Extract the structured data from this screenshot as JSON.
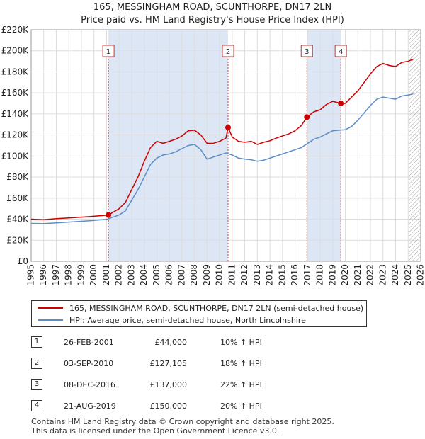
{
  "chart_title_line1": "165, MESSINGHAM ROAD, SCUNTHORPE, DN17 2LN",
  "chart_title_line2": "Price paid vs. HM Land Registry's House Price Index (HPI)",
  "colors": {
    "property": "#cc0000",
    "hpi": "#5b8ec9",
    "grid": "#dddddd",
    "shade": "#dde6f5",
    "hatch": "#888888",
    "marker_line": "#cc0000"
  },
  "legend": {
    "property_label": "165, MESSINGHAM ROAD, SCUNTHORPE, DN17 2LN (semi-detached house)",
    "hpi_label": "HPI: Average price, semi-detached house, North Lincolnshire"
  },
  "transactions": [
    {
      "num": "1",
      "date": "26-FEB-2001",
      "price": "£44,000",
      "hpi": "10% ↑ HPI"
    },
    {
      "num": "2",
      "date": "03-SEP-2010",
      "price": "£127,105",
      "hpi": "18% ↑ HPI"
    },
    {
      "num": "3",
      "date": "08-DEC-2016",
      "price": "£137,000",
      "hpi": "22% ↑ HPI"
    },
    {
      "num": "4",
      "date": "21-AUG-2019",
      "price": "£150,000",
      "hpi": "20% ↑ HPI"
    }
  ],
  "footer_line1": "Contains HM Land Registry data © Crown copyright and database right 2025.",
  "footer_line2": "This data is licensed under the Open Government Licence v3.0.",
  "chart_data": {
    "type": "line",
    "xlim": [
      1995,
      2026
    ],
    "ylim": [
      0,
      220000
    ],
    "yticks": [
      0,
      20000,
      40000,
      60000,
      80000,
      100000,
      120000,
      140000,
      160000,
      180000,
      200000,
      220000
    ],
    "ytick_labels": [
      "£0",
      "£20K",
      "£40K",
      "£60K",
      "£80K",
      "£100K",
      "£120K",
      "£140K",
      "£160K",
      "£180K",
      "£200K",
      "£220K"
    ],
    "xticks": [
      1995,
      1996,
      1997,
      1998,
      1999,
      2000,
      2001,
      2002,
      2003,
      2004,
      2005,
      2006,
      2007,
      2008,
      2009,
      2010,
      2011,
      2012,
      2013,
      2014,
      2015,
      2016,
      2017,
      2018,
      2019,
      2020,
      2021,
      2022,
      2023,
      2024,
      2025,
      2026
    ],
    "xtick_labels": [
      "1995",
      "1996",
      "1997",
      "1998",
      "1999",
      "2000",
      "2001",
      "2002",
      "2003",
      "2004",
      "2005",
      "2006",
      "2007",
      "2008",
      "2009",
      "2010",
      "2011",
      "2012",
      "2013",
      "2014",
      "2015",
      "2016",
      "2017",
      "2018",
      "2019",
      "2020",
      "2021",
      "2022",
      "2023",
      "2024",
      "2025",
      "2026"
    ],
    "shaded_ranges": [
      [
        2001.15,
        2010.67
      ],
      [
        2016.94,
        2019.64
      ]
    ],
    "hatch_from": 2025.1,
    "markers": [
      {
        "label": "1",
        "x": 2001.15,
        "y": 44000
      },
      {
        "label": "2",
        "x": 2010.67,
        "y": 127105
      },
      {
        "label": "3",
        "x": 2016.94,
        "y": 137000
      },
      {
        "label": "4",
        "x": 2019.64,
        "y": 150000
      }
    ],
    "series": [
      {
        "name": "165, MESSINGHAM ROAD, SCUNTHORPE, DN17 2LN (semi-detached house)",
        "points": [
          [
            1995.0,
            40000
          ],
          [
            1996.0,
            39500
          ],
          [
            1997.0,
            40500
          ],
          [
            1998.0,
            41200
          ],
          [
            1999.0,
            42000
          ],
          [
            2000.0,
            42800
          ],
          [
            2001.15,
            44000
          ],
          [
            2002.0,
            50000
          ],
          [
            2002.5,
            56000
          ],
          [
            2003.0,
            68000
          ],
          [
            2003.5,
            80000
          ],
          [
            2004.0,
            95000
          ],
          [
            2004.5,
            108000
          ],
          [
            2005.0,
            114000
          ],
          [
            2005.5,
            112000
          ],
          [
            2006.0,
            114000
          ],
          [
            2006.5,
            116000
          ],
          [
            2007.0,
            119000
          ],
          [
            2007.5,
            124000
          ],
          [
            2008.0,
            124500
          ],
          [
            2008.5,
            120000
          ],
          [
            2009.0,
            112000
          ],
          [
            2009.5,
            112000
          ],
          [
            2010.0,
            114000
          ],
          [
            2010.5,
            117000
          ],
          [
            2010.67,
            127105
          ],
          [
            2011.0,
            118000
          ],
          [
            2011.5,
            114000
          ],
          [
            2012.0,
            113000
          ],
          [
            2012.5,
            114000
          ],
          [
            2013.0,
            111000
          ],
          [
            2013.5,
            113000
          ],
          [
            2014.0,
            114500
          ],
          [
            2014.5,
            117000
          ],
          [
            2015.0,
            119000
          ],
          [
            2015.5,
            121000
          ],
          [
            2016.0,
            124000
          ],
          [
            2016.5,
            129000
          ],
          [
            2016.94,
            137000
          ],
          [
            2017.5,
            142000
          ],
          [
            2018.0,
            144000
          ],
          [
            2018.5,
            149000
          ],
          [
            2019.0,
            152000
          ],
          [
            2019.64,
            150000
          ],
          [
            2020.0,
            150000
          ],
          [
            2020.5,
            156000
          ],
          [
            2021.0,
            162000
          ],
          [
            2021.5,
            170000
          ],
          [
            2022.0,
            178000
          ],
          [
            2022.5,
            185000
          ],
          [
            2023.0,
            188000
          ],
          [
            2023.5,
            186000
          ],
          [
            2024.0,
            185000
          ],
          [
            2024.5,
            189000
          ],
          [
            2025.0,
            190000
          ],
          [
            2025.4,
            192000
          ]
        ]
      },
      {
        "name": "HPI: Average price, semi-detached house, North Lincolnshire",
        "points": [
          [
            1995.0,
            36000
          ],
          [
            1996.0,
            35800
          ],
          [
            1997.0,
            36500
          ],
          [
            1998.0,
            37300
          ],
          [
            1999.0,
            38000
          ],
          [
            2000.0,
            38800
          ],
          [
            2001.0,
            39800
          ],
          [
            2002.0,
            44000
          ],
          [
            2002.5,
            48000
          ],
          [
            2003.0,
            58000
          ],
          [
            2003.5,
            68000
          ],
          [
            2004.0,
            80000
          ],
          [
            2004.5,
            92000
          ],
          [
            2005.0,
            98000
          ],
          [
            2005.5,
            101000
          ],
          [
            2006.0,
            102000
          ],
          [
            2006.5,
            104000
          ],
          [
            2007.0,
            107000
          ],
          [
            2007.5,
            110000
          ],
          [
            2008.0,
            111000
          ],
          [
            2008.5,
            106000
          ],
          [
            2009.0,
            97000
          ],
          [
            2009.5,
            99000
          ],
          [
            2010.0,
            101000
          ],
          [
            2010.5,
            103000
          ],
          [
            2011.0,
            101000
          ],
          [
            2011.5,
            98000
          ],
          [
            2012.0,
            97000
          ],
          [
            2012.5,
            96500
          ],
          [
            2013.0,
            95000
          ],
          [
            2013.5,
            96000
          ],
          [
            2014.0,
            98000
          ],
          [
            2014.5,
            100000
          ],
          [
            2015.0,
            102000
          ],
          [
            2015.5,
            104000
          ],
          [
            2016.0,
            106000
          ],
          [
            2016.5,
            108000
          ],
          [
            2017.0,
            112000
          ],
          [
            2017.5,
            116000
          ],
          [
            2018.0,
            118000
          ],
          [
            2018.5,
            121000
          ],
          [
            2019.0,
            124000
          ],
          [
            2019.5,
            124500
          ],
          [
            2020.0,
            125000
          ],
          [
            2020.5,
            128000
          ],
          [
            2021.0,
            134000
          ],
          [
            2021.5,
            141000
          ],
          [
            2022.0,
            148000
          ],
          [
            2022.5,
            154000
          ],
          [
            2023.0,
            156000
          ],
          [
            2023.5,
            155000
          ],
          [
            2024.0,
            154000
          ],
          [
            2024.5,
            157000
          ],
          [
            2025.0,
            158000
          ],
          [
            2025.4,
            159000
          ]
        ]
      }
    ]
  }
}
